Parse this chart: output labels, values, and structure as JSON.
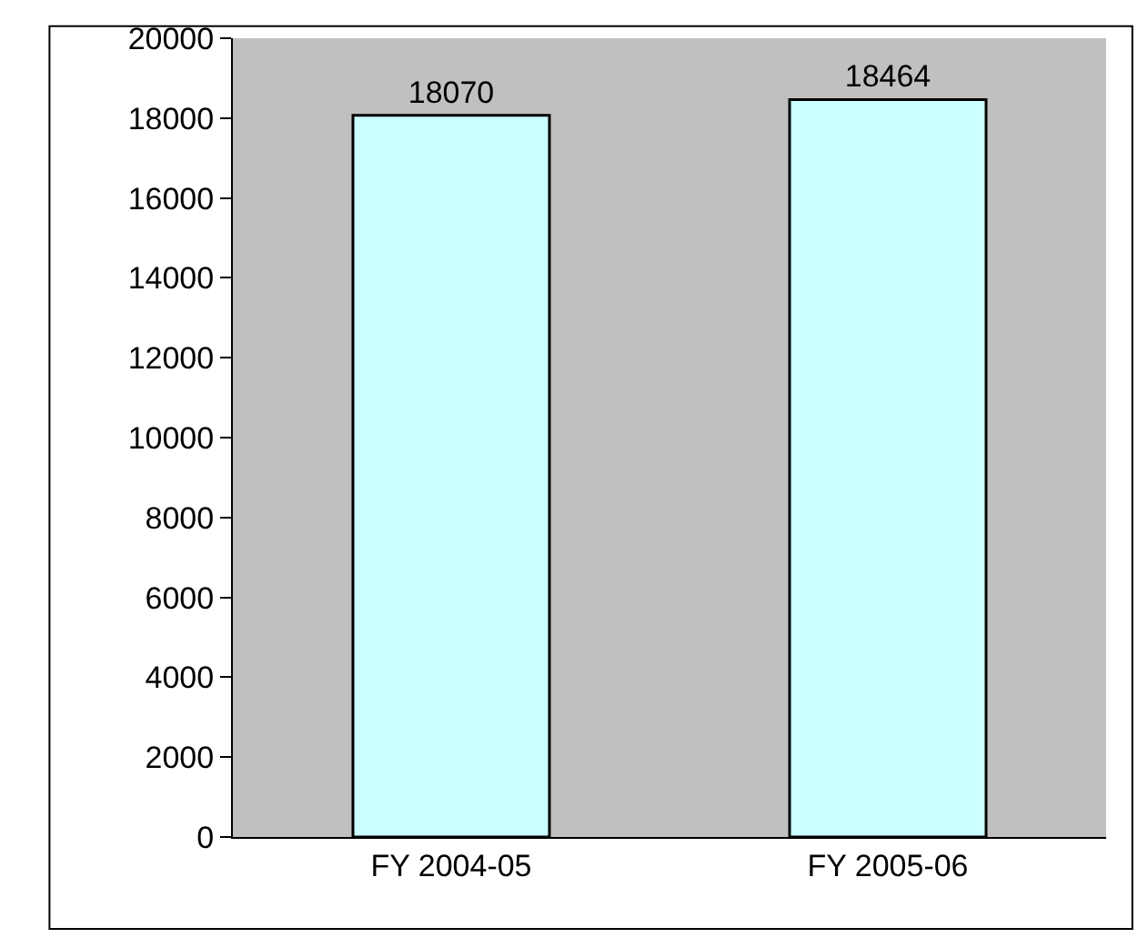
{
  "chart_data": {
    "type": "bar",
    "categories": [
      "FY 2004-05",
      "FY 2005-06"
    ],
    "values": [
      18070,
      18464
    ],
    "color": "#ccffff",
    "ylim": [
      0,
      20000
    ],
    "yticks": [
      0,
      2000,
      4000,
      6000,
      8000,
      10000,
      12000,
      14000,
      16000,
      18000,
      20000
    ],
    "data_labels": true,
    "grid": false,
    "legend": false
  }
}
